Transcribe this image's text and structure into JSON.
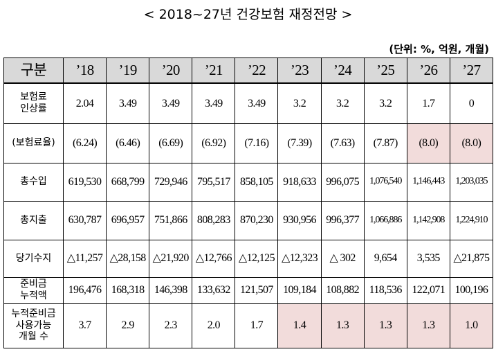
{
  "header": {
    "title": "< 2018~27년 건강보험 재정전망 >",
    "unit": "(단위: %, 억원, 개월)"
  },
  "table": {
    "columns": [
      "구분",
      "’18",
      "’19",
      "’20",
      "’21",
      "’22",
      "’23",
      "’24",
      "’25",
      "’26",
      "’27"
    ],
    "rows": [
      [
        "보험료\n인상률",
        "2.04",
        "3.49",
        "3.49",
        "3.49",
        "3.49",
        "3.2",
        "3.2",
        "3.2",
        "1.7",
        "0"
      ],
      [
        "(보험료율)",
        "(6.24)",
        "(6.46)",
        "(6.69)",
        "(6.92)",
        "(7.16)",
        "(7.39)",
        "(7.63)",
        "(7.87)",
        "(8.0)",
        "(8.0)"
      ],
      [
        "총수입",
        "619,530",
        "668,799",
        "729,946",
        "795,517",
        "858,105",
        "918,633",
        "996,075",
        "1,076,540",
        "1,146,443",
        "1,203,035"
      ],
      [
        "총지출",
        "630,787",
        "696,957",
        "751,866",
        "808,283",
        "870,230",
        "930,956",
        "996,377",
        "1,066,886",
        "1,142,908",
        "1,224,910"
      ],
      [
        "당기수지",
        "△11,257",
        "△28,158",
        "△21,920",
        "△12,766",
        "△12,125",
        "△12,323",
        "△ 302",
        "9,654",
        "3,535",
        "△21,875"
      ],
      [
        "준비금\n누적액",
        "196,476",
        "168,318",
        "146,398",
        "133,632",
        "121,507",
        "109,184",
        "108,882",
        "118,536",
        "122,071",
        "100,196"
      ],
      [
        "누적준비금\n사용가능\n개월 수",
        "3.7",
        "2.9",
        "2.3",
        "2.0",
        "1.7",
        "1.4",
        "1.3",
        "1.3",
        "1.3",
        "1.0"
      ]
    ],
    "highlight": {
      "color": "#f2dcdb",
      "cells": [
        [
          1,
          9
        ],
        [
          1,
          10
        ],
        [
          6,
          6
        ],
        [
          6,
          7
        ],
        [
          6,
          8
        ],
        [
          6,
          9
        ],
        [
          6,
          10
        ]
      ]
    }
  }
}
